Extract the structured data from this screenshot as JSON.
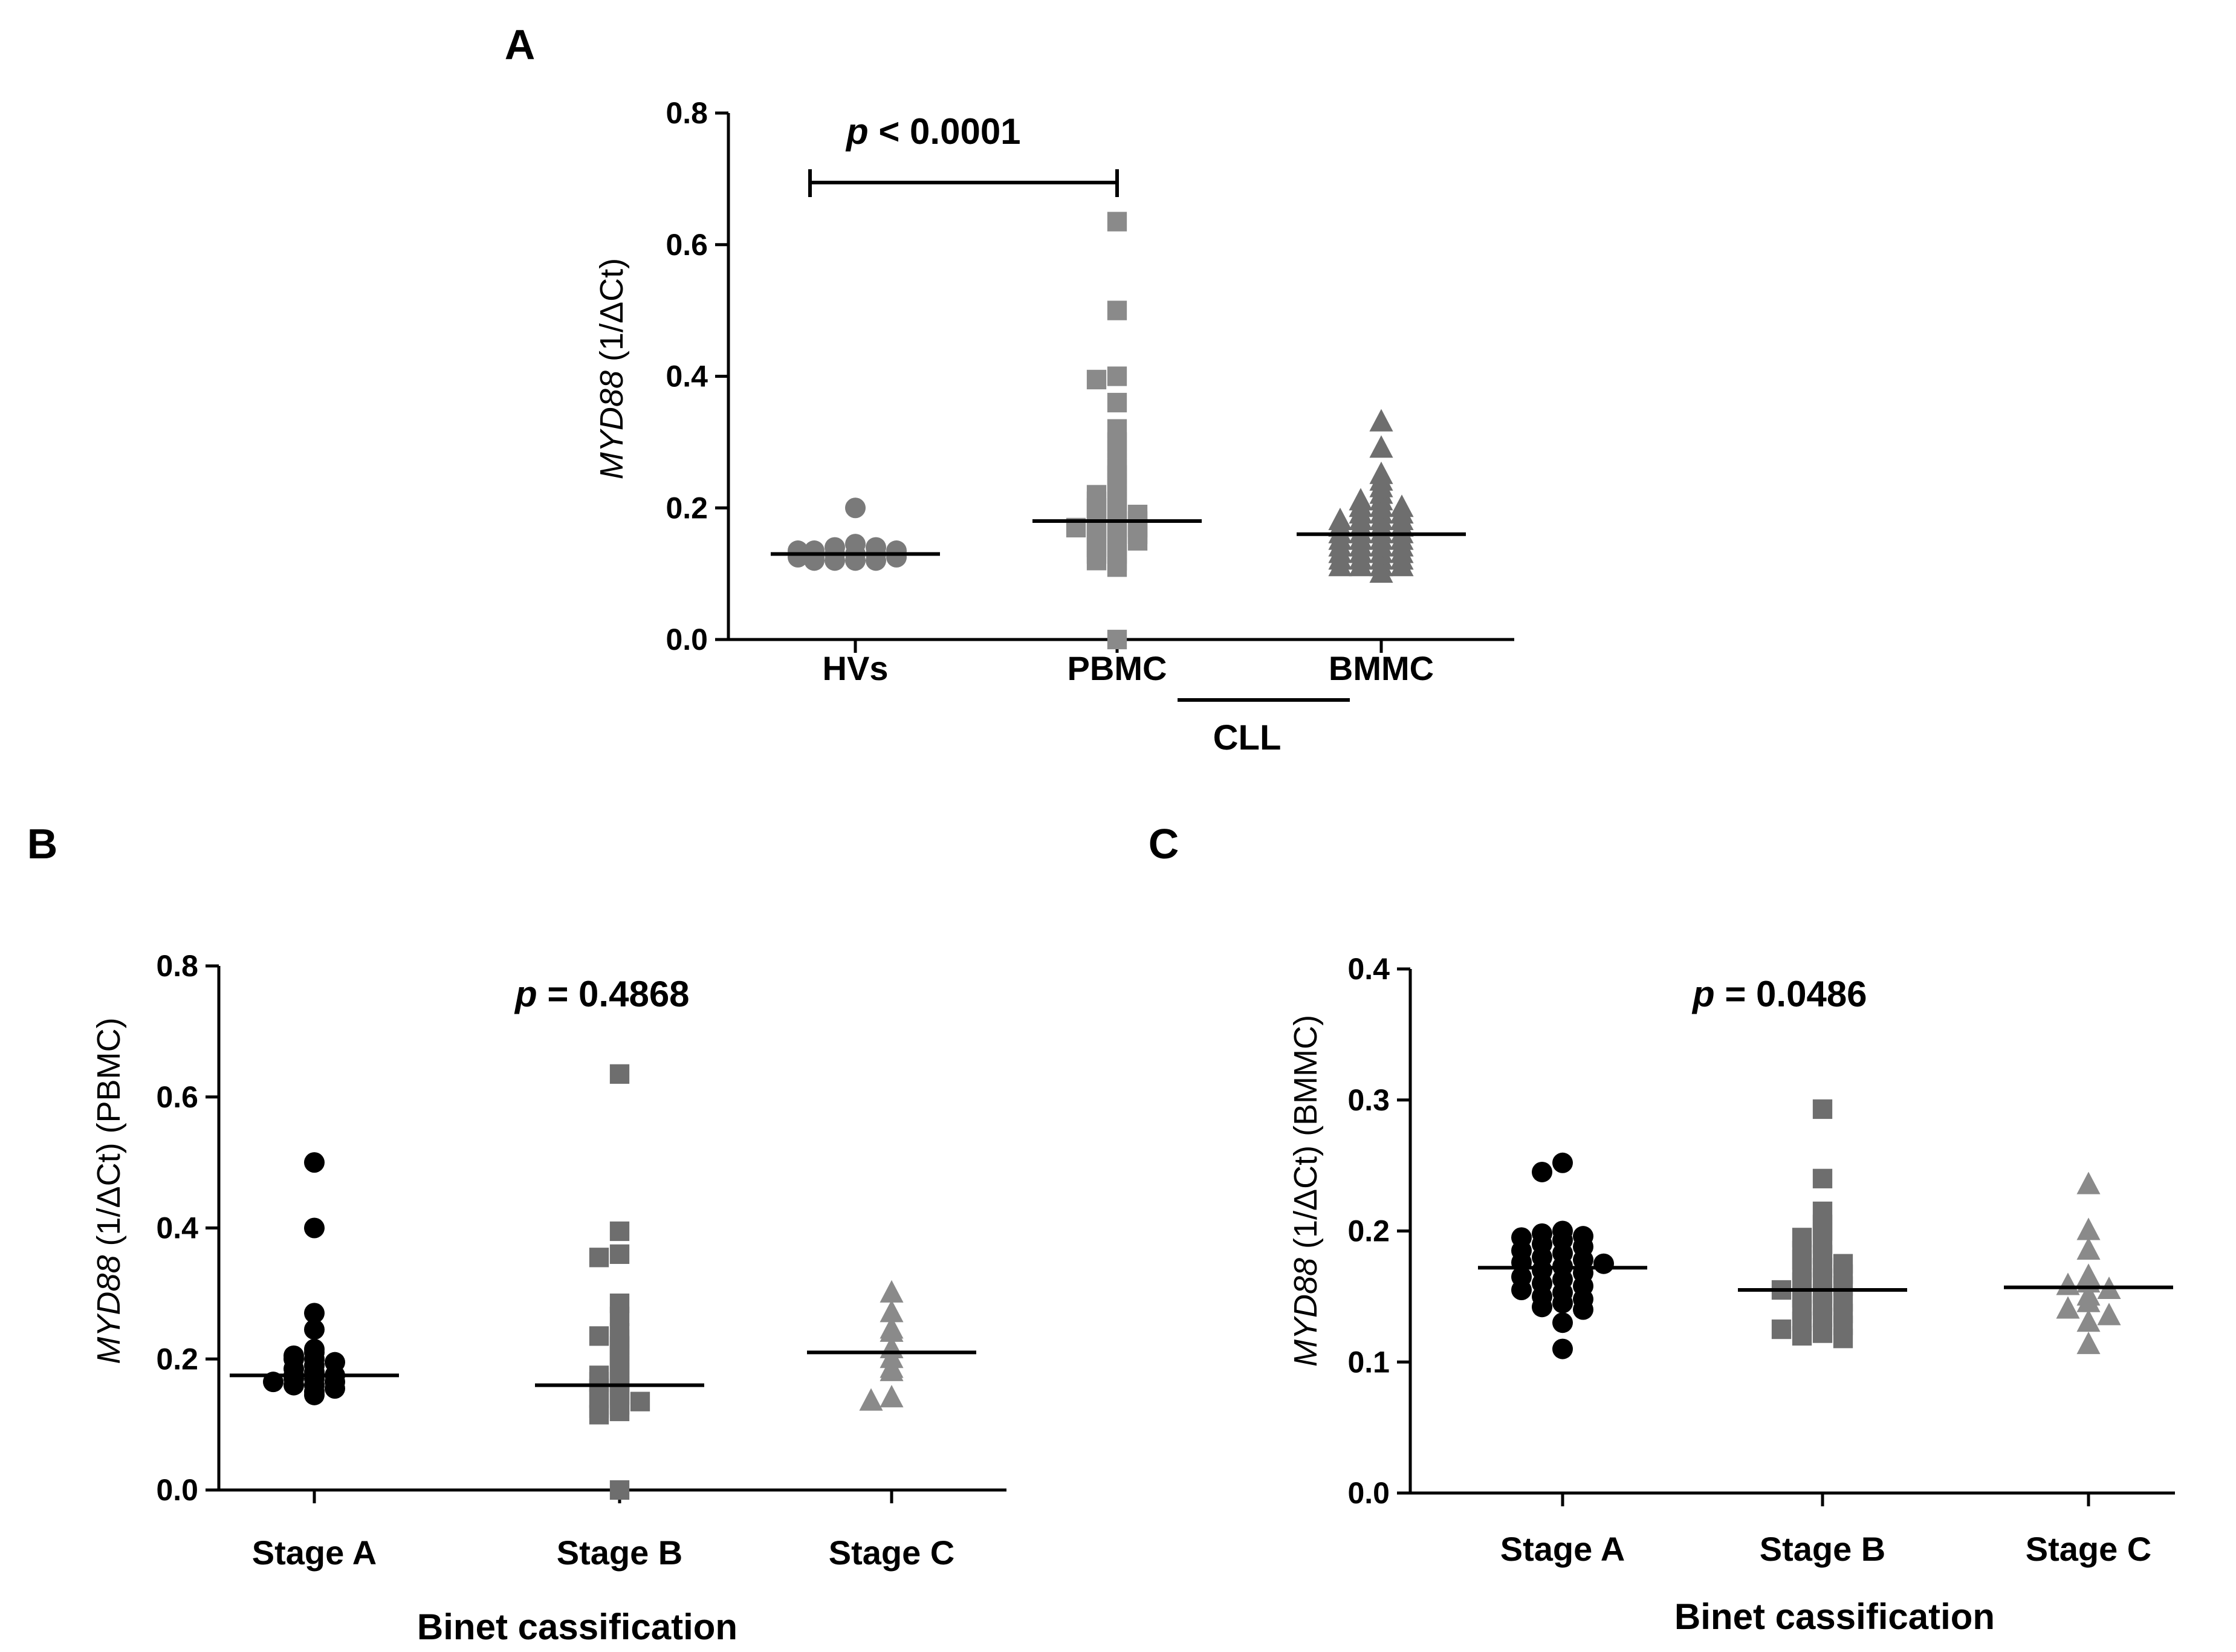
{
  "chart_data": [
    {
      "panel": "A",
      "type": "scatter",
      "ylabel_gene": "MYD88",
      "ylabel_rest": "(1/ΔCt)",
      "ylim": [
        0,
        0.8
      ],
      "yticks": [
        "0.0",
        "0.2",
        "0.4",
        "0.6",
        "0.8"
      ],
      "categories": [
        "HVs",
        "PBMC",
        "BMMC"
      ],
      "group_label": "CLL",
      "p_value": "< 0.0001",
      "p_prefix": "p",
      "comparison": [
        "HVs",
        "PBMC"
      ],
      "medians": [
        0.13,
        0.18,
        0.16
      ],
      "series": [
        {
          "name": "HVs",
          "marker": "circle",
          "color": "#7a7a7a",
          "values": [
            0.2,
            0.145,
            0.14,
            0.14,
            0.135,
            0.135,
            0.135,
            0.13,
            0.13,
            0.13,
            0.125,
            0.125,
            0.125,
            0.12,
            0.12,
            0.12,
            0.12
          ]
        },
        {
          "name": "PBMC",
          "marker": "square",
          "color": "#8a8a8a",
          "values": [
            0.635,
            0.5,
            0.4,
            0.395,
            0.36,
            0.32,
            0.3,
            0.29,
            0.27,
            0.26,
            0.25,
            0.24,
            0.23,
            0.22,
            0.22,
            0.21,
            0.21,
            0.2,
            0.2,
            0.19,
            0.19,
            0.19,
            0.18,
            0.18,
            0.18,
            0.17,
            0.17,
            0.17,
            0.17,
            0.16,
            0.16,
            0.16,
            0.15,
            0.15,
            0.15,
            0.14,
            0.14,
            0.13,
            0.13,
            0.12,
            0.12,
            0.11,
            0.0
          ]
        },
        {
          "name": "BMMC",
          "marker": "triangle",
          "color": "#6e6e6e",
          "values": [
            0.33,
            0.29,
            0.25,
            0.24,
            0.23,
            0.22,
            0.21,
            0.21,
            0.2,
            0.2,
            0.2,
            0.19,
            0.19,
            0.19,
            0.18,
            0.18,
            0.18,
            0.18,
            0.17,
            0.17,
            0.17,
            0.17,
            0.16,
            0.16,
            0.16,
            0.16,
            0.15,
            0.15,
            0.15,
            0.15,
            0.14,
            0.14,
            0.14,
            0.14,
            0.13,
            0.13,
            0.13,
            0.13,
            0.12,
            0.12,
            0.12,
            0.12,
            0.11,
            0.11,
            0.11,
            0.11,
            0.1
          ]
        }
      ]
    },
    {
      "panel": "B",
      "type": "scatter",
      "ylabel_gene": "MYD88",
      "ylabel_rest": "(1/ΔCt) (PBMC)",
      "ylim": [
        0,
        0.8
      ],
      "yticks": [
        "0.0",
        "0.2",
        "0.4",
        "0.6",
        "0.8"
      ],
      "categories": [
        "Stage A",
        "Stage B",
        "Stage C"
      ],
      "xlabel": "Binet cassification",
      "p_value": "= 0.4868",
      "p_prefix": "p",
      "medians": [
        0.175,
        0.16,
        0.21
      ],
      "series": [
        {
          "name": "Stage A",
          "marker": "circle",
          "color": "#000000",
          "values": [
            0.5,
            0.4,
            0.27,
            0.245,
            0.215,
            0.21,
            0.205,
            0.2,
            0.2,
            0.195,
            0.19,
            0.185,
            0.18,
            0.175,
            0.175,
            0.17,
            0.17,
            0.165,
            0.165,
            0.16,
            0.16,
            0.155,
            0.15,
            0.145
          ]
        },
        {
          "name": "Stage B",
          "marker": "square",
          "color": "#6e6e6e",
          "values": [
            0.635,
            0.395,
            0.36,
            0.355,
            0.285,
            0.265,
            0.24,
            0.235,
            0.23,
            0.22,
            0.21,
            0.2,
            0.19,
            0.18,
            0.175,
            0.17,
            0.165,
            0.16,
            0.155,
            0.15,
            0.145,
            0.14,
            0.135,
            0.13,
            0.125,
            0.12,
            0.115,
            0.0
          ]
        },
        {
          "name": "Stage C",
          "marker": "triangle",
          "color": "#8a8a8a",
          "values": [
            0.3,
            0.27,
            0.245,
            0.24,
            0.215,
            0.2,
            0.185,
            0.18,
            0.14,
            0.135
          ]
        }
      ]
    },
    {
      "panel": "C",
      "type": "scatter",
      "ylabel_gene": "MYD88",
      "ylabel_rest": "(1/ΔCt) (BMMC)",
      "ylim": [
        0,
        0.4
      ],
      "yticks": [
        "0.0",
        "0.1",
        "0.2",
        "0.3",
        "0.4"
      ],
      "categories": [
        "Stage A",
        "Stage B",
        "Stage C"
      ],
      "xlabel": "Binet cassification",
      "p_value": "= 0.0486",
      "p_prefix": "p",
      "medians": [
        0.172,
        0.155,
        0.157
      ],
      "series": [
        {
          "name": "Stage A",
          "marker": "circle",
          "color": "#000000",
          "values": [
            0.252,
            0.245,
            0.2,
            0.198,
            0.196,
            0.195,
            0.193,
            0.19,
            0.188,
            0.185,
            0.183,
            0.18,
            0.178,
            0.176,
            0.175,
            0.173,
            0.17,
            0.168,
            0.165,
            0.163,
            0.16,
            0.158,
            0.155,
            0.153,
            0.15,
            0.148,
            0.145,
            0.142,
            0.14,
            0.13,
            0.11
          ]
        },
        {
          "name": "Stage B",
          "marker": "square",
          "color": "#6e6e6e",
          "values": [
            0.293,
            0.24,
            0.215,
            0.205,
            0.2,
            0.195,
            0.19,
            0.185,
            0.182,
            0.178,
            0.175,
            0.172,
            0.17,
            0.167,
            0.164,
            0.161,
            0.158,
            0.155,
            0.152,
            0.149,
            0.146,
            0.143,
            0.14,
            0.137,
            0.134,
            0.131,
            0.128,
            0.125,
            0.122,
            0.12,
            0.118
          ]
        },
        {
          "name": "Stage C",
          "marker": "triangle",
          "color": "#8a8a8a",
          "values": [
            0.235,
            0.2,
            0.185,
            0.165,
            0.16,
            0.158,
            0.155,
            0.15,
            0.145,
            0.14,
            0.135,
            0.13,
            0.113
          ]
        }
      ]
    }
  ]
}
